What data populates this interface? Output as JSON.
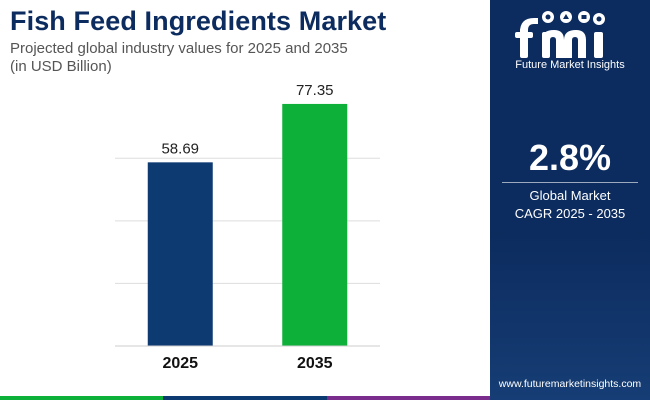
{
  "header": {
    "title": "Fish Feed Ingredients Market",
    "subtitle_line1": "Projected global industry values for 2025 and 2035",
    "subtitle_line2": "(in USD Billion)"
  },
  "chart_data": {
    "type": "bar",
    "categories": [
      "2025",
      "2035"
    ],
    "values": [
      58.69,
      77.35
    ],
    "value_labels": [
      "58.69",
      "77.35"
    ],
    "bar_colors": [
      "#0e3a72",
      "#0db13a"
    ],
    "grid": true,
    "ylim": [
      0,
      85
    ]
  },
  "sidebar": {
    "logo_text": "Future Market Insights",
    "cagr_value": "2.8%",
    "cagr_label_line1": "Global Market",
    "cagr_label_line2": "CAGR 2025 - 2035",
    "website": "www.futuremarketinsights.com",
    "background_color": "#0c2b5e"
  },
  "footer": {
    "stripe_colors": [
      "#0db13a",
      "#0e3a72",
      "#7b2d8e",
      "#0c2b5e"
    ]
  }
}
